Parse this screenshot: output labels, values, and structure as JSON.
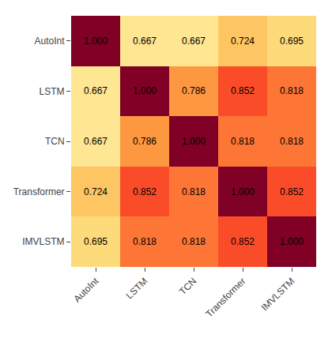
{
  "chart_data": {
    "type": "heatmap",
    "categories": [
      "AutoInt",
      "LSTM",
      "TCN",
      "Transformer",
      "IMVLSTM"
    ],
    "values": [
      [
        1.0,
        0.667,
        0.667,
        0.724,
        0.695
      ],
      [
        0.667,
        1.0,
        0.786,
        0.852,
        0.818
      ],
      [
        0.667,
        0.786,
        1.0,
        0.818,
        0.818
      ],
      [
        0.724,
        0.852,
        0.818,
        1.0,
        0.852
      ],
      [
        0.695,
        0.818,
        0.818,
        0.852,
        1.0
      ]
    ],
    "value_labels": [
      [
        "1.000",
        "0.667",
        "0.667",
        "0.724",
        "0.695"
      ],
      [
        "0.667",
        "1.000",
        "0.786",
        "0.852",
        "0.818"
      ],
      [
        "0.667",
        "0.786",
        "1.000",
        "0.818",
        "0.818"
      ],
      [
        "0.724",
        "0.852",
        "0.818",
        "1.000",
        "0.852"
      ],
      [
        "0.695",
        "0.818",
        "0.818",
        "0.852",
        "1.000"
      ]
    ],
    "color": "YlOrRd",
    "color_range": [
      0.6,
      1.0
    ],
    "data_labels": true,
    "grid": false
  }
}
